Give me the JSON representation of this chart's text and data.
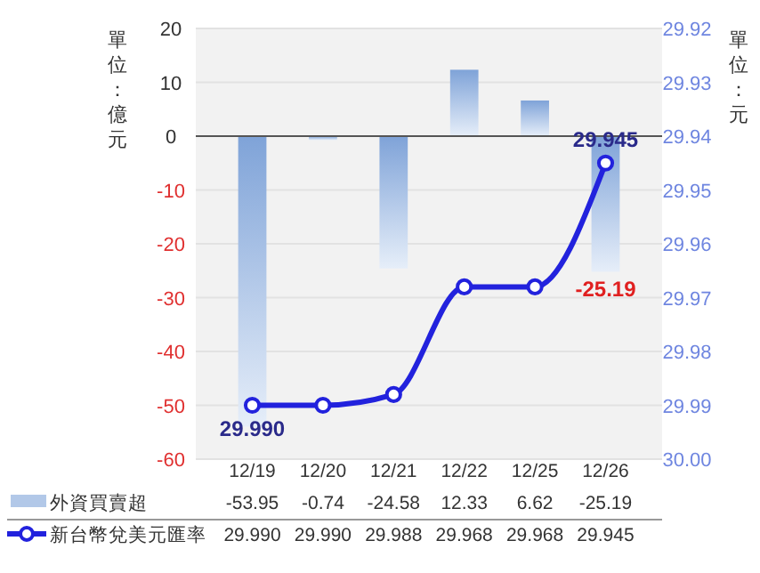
{
  "chart_data": {
    "type": "bar",
    "categories": [
      "12/19",
      "12/20",
      "12/21",
      "12/22",
      "12/25",
      "12/26"
    ],
    "ylabel": "單位：億元",
    "y2label": "單位：元",
    "series": [
      {
        "name": "外資買賣超",
        "color": "#7fa3d8",
        "values": [
          -53.95,
          -0.74,
          -24.58,
          12.33,
          6.62,
          -25.19
        ],
        "value_labels": [
          "-53.95",
          "-0.74",
          "-24.58",
          "12.33",
          "6.62",
          "-25.19"
        ]
      },
      {
        "name": "新台幣兌美元匯率",
        "type": "line",
        "axis": "y2",
        "color": "#2222dd",
        "values": [
          29.99,
          29.99,
          29.988,
          29.968,
          29.968,
          29.945
        ],
        "value_labels": [
          "29.990",
          "29.990",
          "29.988",
          "29.968",
          "29.968",
          "29.945"
        ]
      }
    ],
    "ylim": [
      -60,
      20
    ],
    "yticks": [
      20,
      10,
      0,
      -10,
      -20,
      -30,
      -40,
      -50,
      -60
    ],
    "y2lim": [
      30,
      29.92
    ],
    "y2ticks": [
      29.92,
      29.93,
      29.94,
      29.95,
      29.96,
      29.97,
      29.98,
      29.99,
      {
        "value": 30,
        "label": "30.00"
      }
    ],
    "annotations": [
      "29.990",
      "29.945",
      {
        "text": "-25.19",
        "x": "12/26",
        "y": -25.19
      }
    ],
    "grid": "y",
    "legend": "bottom left",
    "marker": "circle",
    "line_style": "solid"
  }
}
